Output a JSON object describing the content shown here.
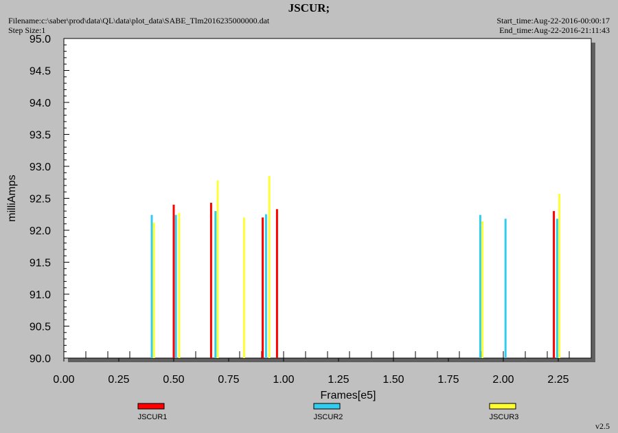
{
  "header": {
    "title": "JSCUR;",
    "filename": "Filename:c:\\saber\\prod\\data\\QL\\data\\plot_data\\SABE_Tlm2016235000000.dat",
    "step_size": "Step Size:1",
    "start_time": "Start_time:Aug-22-2016-00:00:17",
    "end_time": "End_time:Aug-22-2016-21:11:43",
    "version": "v2.5"
  },
  "colors": {
    "background": "#c0c0c0",
    "plot_area": "#ffffff",
    "JSCUR1": "#ff0000",
    "JSCUR2": "#33ccee",
    "JSCUR3": "#ffff33"
  },
  "chart_data": {
    "type": "bar",
    "xlabel": "Frames[e5]",
    "ylabel": "milliAmps",
    "xlim": [
      0.0,
      2.4
    ],
    "ylim": [
      90.0,
      95.0
    ],
    "xticks": [
      "0.00",
      "0.25",
      "0.50",
      "0.75",
      "1.00",
      "1.25",
      "1.50",
      "1.75",
      "2.00",
      "2.25"
    ],
    "yticks": [
      "90.0",
      "90.5",
      "91.0",
      "91.5",
      "92.0",
      "92.5",
      "93.0",
      "93.5",
      "94.0",
      "94.5",
      "95.0"
    ],
    "grid": false,
    "legend_position": "bottom",
    "series": [
      {
        "name": "JSCUR1",
        "points": [
          {
            "x": 0.5,
            "y": 92.4
          },
          {
            "x": 0.67,
            "y": 92.43
          },
          {
            "x": 0.905,
            "y": 92.2
          },
          {
            "x": 0.97,
            "y": 92.33
          },
          {
            "x": 2.23,
            "y": 92.3
          }
        ]
      },
      {
        "name": "JSCUR2",
        "points": [
          {
            "x": 0.4,
            "y": 92.24
          },
          {
            "x": 0.51,
            "y": 92.24
          },
          {
            "x": 0.69,
            "y": 92.3
          },
          {
            "x": 0.92,
            "y": 92.25
          },
          {
            "x": 1.895,
            "y": 92.24
          },
          {
            "x": 2.01,
            "y": 92.18
          },
          {
            "x": 2.245,
            "y": 92.18
          }
        ]
      },
      {
        "name": "JSCUR3",
        "points": [
          {
            "x": 0.41,
            "y": 92.12
          },
          {
            "x": 0.525,
            "y": 92.27
          },
          {
            "x": 0.7,
            "y": 92.78
          },
          {
            "x": 0.82,
            "y": 92.2
          },
          {
            "x": 0.935,
            "y": 92.85
          },
          {
            "x": 1.905,
            "y": 92.14
          },
          {
            "x": 2.255,
            "y": 92.57
          }
        ]
      }
    ]
  }
}
